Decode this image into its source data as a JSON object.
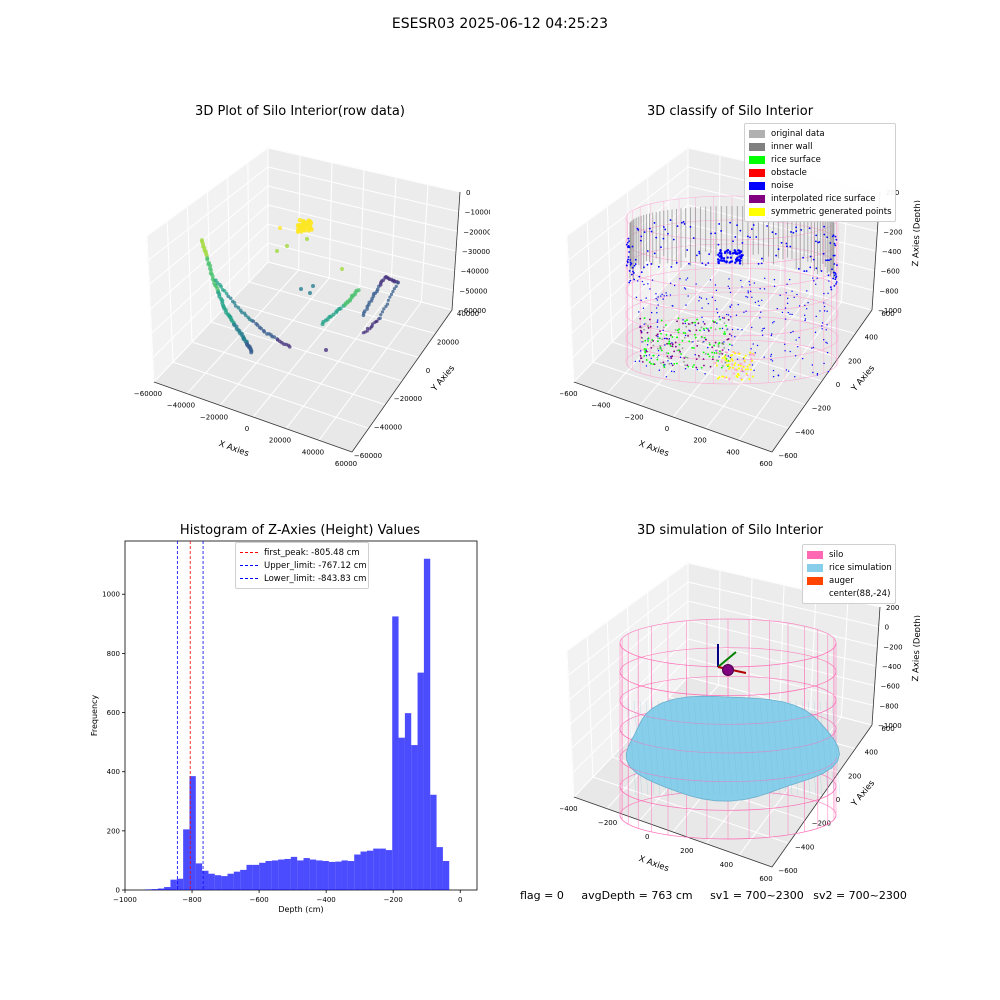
{
  "suptitle": "ESESR03 2025-06-12 04:25:23",
  "footer": {
    "flag": "flag = 0",
    "avg_depth": "avgDepth = 763 cm",
    "sv1": "sv1 = 700~2300",
    "sv2": "sv2 = 700~2300"
  },
  "chart_data": [
    {
      "type": "scatter",
      "title": "3D Plot of Silo Interior(row data)",
      "xlabel": "X Axies",
      "ylabel": "Y Axies",
      "zlabel": "Z Axies (Depth)",
      "x_ticks": [
        "−60000",
        "−40000",
        "−20000",
        "0",
        "20000",
        "40000",
        "60000"
      ],
      "y_ticks": [
        "−60000",
        "−40000",
        "−20000",
        "0",
        "20000",
        "40000"
      ],
      "z_ticks": [
        "0",
        "−10000",
        "−20000",
        "−30000",
        "−40000",
        "−50000",
        "−60000"
      ],
      "colormap": "viridis"
    },
    {
      "type": "scatter",
      "title": "3D classify of Silo Interior",
      "xlabel": "X Axies",
      "ylabel": "Y Axies",
      "zlabel": "Z Axies (Depth)",
      "x_ticks": [
        "−600",
        "−400",
        "−200",
        "0",
        "200",
        "400",
        "600"
      ],
      "y_ticks": [
        "−600",
        "−400",
        "−200",
        "0",
        "200",
        "400",
        "600"
      ],
      "z_ticks": [
        "200",
        "0",
        "−200",
        "−400",
        "−600",
        "−800",
        "−1000"
      ],
      "legend": [
        {
          "label": "original data",
          "color": "#b0b0b0"
        },
        {
          "label": "inner wall",
          "color": "#808080"
        },
        {
          "label": "rice surface",
          "color": "#00ff00"
        },
        {
          "label": "obstacle",
          "color": "#ff0000"
        },
        {
          "label": "noise",
          "color": "#0000ff"
        },
        {
          "label": "interpolated rice surface",
          "color": "#800080"
        },
        {
          "label": "symmetric generated points",
          "color": "#ffff00"
        }
      ],
      "legend_placement": "upper-right"
    },
    {
      "type": "bar",
      "title": "Histogram of Z-Axies (Height) Values",
      "xlabel": "Depth (cm)",
      "ylabel": "Frequency",
      "xlim": [
        -1000,
        50
      ],
      "ylim": [
        0,
        1180
      ],
      "x_ticks": [
        -1000,
        -800,
        -600,
        -400,
        -200,
        0
      ],
      "y_ticks": [
        0,
        200,
        400,
        600,
        800,
        1000
      ],
      "bin_width": 18.9,
      "bin_start": -940,
      "values": [
        2,
        3,
        5,
        10,
        35,
        38,
        205,
        385,
        90,
        65,
        55,
        50,
        47,
        55,
        62,
        68,
        85,
        85,
        92,
        98,
        100,
        103,
        105,
        112,
        100,
        108,
        103,
        100,
        98,
        95,
        96,
        100,
        98,
        120,
        130,
        133,
        140,
        140,
        135,
        925,
        515,
        598,
        490,
        735,
        1120,
        322,
        145,
        98
      ],
      "bar_color": "#0000ff",
      "lines": [
        {
          "label": "first_peak: -805.48 cm",
          "x": -805.48,
          "color": "#ff0000"
        },
        {
          "label": "Upper_limit: -767.12 cm",
          "x": -767.12,
          "color": "#0000ff"
        },
        {
          "label": "Lower_limit: -843.83 cm",
          "x": -843.83,
          "color": "#0000ff"
        }
      ],
      "legend_placement": "upper-center"
    },
    {
      "type": "surface",
      "title": "3D simulation of Silo Interior",
      "xlabel": "X Axies",
      "ylabel": "Y Axies",
      "zlabel": "Z Axies (Depth)",
      "x_ticks": [
        "−400",
        "−200",
        "0",
        "200",
        "400",
        "600"
      ],
      "y_ticks": [
        "−600",
        "−400",
        "−200",
        "0",
        "200",
        "400",
        "600"
      ],
      "z_ticks": [
        "200",
        "0",
        "−200",
        "−400",
        "−600",
        "−800",
        "−1000"
      ],
      "legend": [
        {
          "label": "silo",
          "color": "#ff69b4"
        },
        {
          "label": "rice simulation",
          "color": "#87ceeb"
        },
        {
          "label": "auger",
          "color": "#ff4500"
        },
        {
          "label": "center(88,-24)",
          "color": ""
        }
      ],
      "legend_placement": "upper-right"
    }
  ]
}
